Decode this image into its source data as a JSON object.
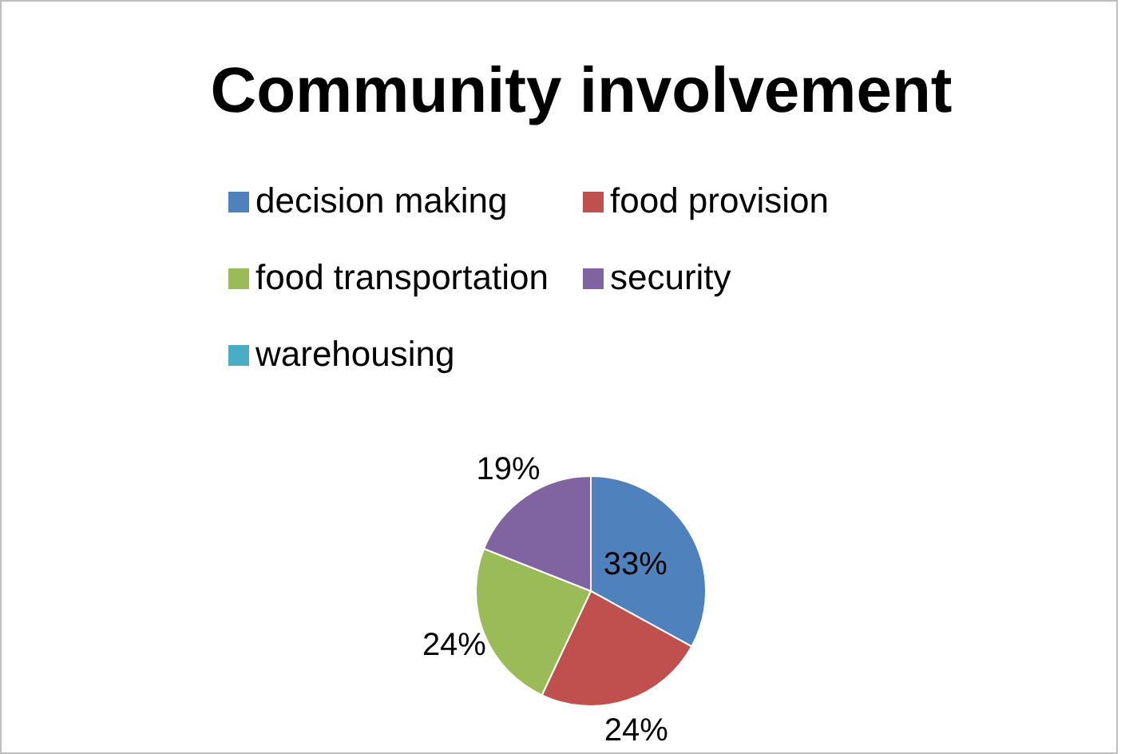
{
  "chart_data": {
    "type": "pie",
    "title": "Community involvement",
    "categories": [
      "decision making",
      "food provision",
      "food transportation",
      "security",
      "warehousing"
    ],
    "values": [
      33,
      24,
      24,
      19,
      0
    ],
    "value_labels": [
      "33%",
      "24%",
      "24%",
      "19%",
      null
    ],
    "colors": [
      "#4f81bd",
      "#c0504d",
      "#9bbb59",
      "#8064a2",
      "#4bacc6"
    ],
    "legend": "top"
  }
}
